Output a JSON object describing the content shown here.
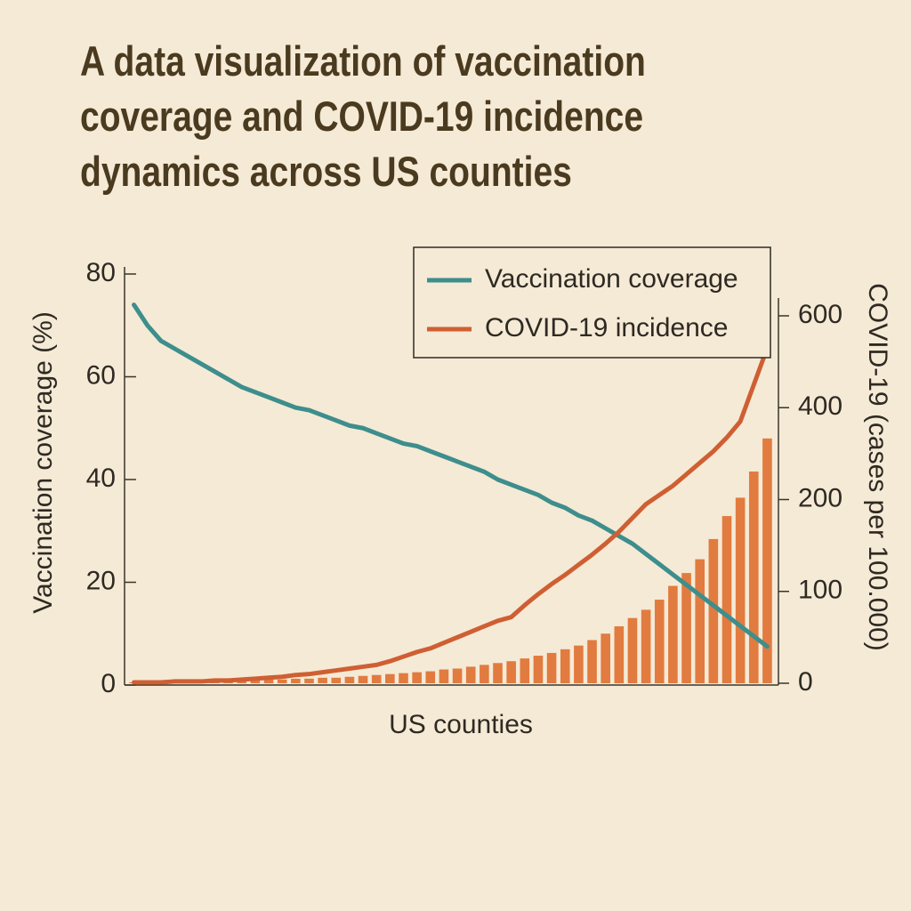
{
  "chart_data": {
    "type": "line",
    "title": "A data visualization of vaccination coverage and COVID-19 incidence dynamics across US counties",
    "x_label": "US counties",
    "y_label": "Vaccination coverage (%)",
    "y2_label": "COVID-19 (cases per 100.000)",
    "categories": [
      null,
      null,
      null,
      null,
      null,
      null,
      null,
      null,
      null,
      null,
      null,
      null,
      null,
      null,
      null,
      null,
      null,
      null,
      null,
      null,
      null,
      null,
      null,
      null,
      null,
      null,
      null,
      null,
      null,
      null,
      null,
      null,
      null,
      null,
      null,
      null,
      null,
      null,
      null,
      null,
      null,
      null,
      null,
      null,
      null,
      null,
      null,
      null
    ],
    "ylim": [
      0,
      80
    ],
    "yticks": [
      0,
      20,
      40,
      60,
      80
    ],
    "y2lim": [
      0,
      600
    ],
    "y2ticks": [
      0,
      100,
      200,
      400,
      600
    ],
    "legend": "top-right",
    "series": [
      {
        "name": "Vaccination coverage",
        "type": "line",
        "color": "#3d8e8c",
        "values": [
          74,
          70,
          67,
          65.5,
          64,
          62.5,
          61,
          59.5,
          58,
          57,
          56,
          55,
          54,
          53.5,
          52.5,
          51.5,
          50.5,
          50,
          49,
          48,
          47,
          46.5,
          45.5,
          44.5,
          43.5,
          42.5,
          41.5,
          40,
          39,
          38,
          37,
          35.5,
          34.5,
          33,
          32,
          30.5,
          29,
          27.5,
          25.5,
          23.5,
          21.5,
          19.5,
          17.5,
          15.5,
          13.5,
          11.5,
          9.5,
          7.5
        ]
      },
      {
        "name": "COVID-19 incidence",
        "type": "line",
        "axis": "y2",
        "color": "#cf5f33",
        "values": [
          1,
          1,
          1,
          2,
          2,
          2,
          3,
          3,
          4,
          5,
          6,
          7,
          9,
          10,
          12,
          14,
          16,
          18,
          20,
          24,
          29,
          34,
          38,
          44,
          50,
          56,
          62,
          68,
          72,
          85,
          97,
          108,
          118,
          129,
          140,
          152,
          165,
          180,
          195,
          210,
          230,
          255,
          280,
          305,
          335,
          370,
          450,
          530
        ]
      },
      {
        "type": "bar",
        "axis": "y2",
        "color": "#e27b3f",
        "values": [
          1,
          1,
          1,
          1,
          2,
          2,
          2,
          3,
          3,
          3,
          4,
          4,
          5,
          5,
          6,
          6,
          7,
          8,
          9,
          10,
          11,
          12,
          13,
          15,
          16,
          18,
          20,
          22,
          24,
          27,
          30,
          33,
          37,
          41,
          47,
          54,
          62,
          71,
          80,
          91,
          106,
          120,
          135,
          157,
          182,
          204,
          261,
          333
        ]
      }
    ]
  }
}
